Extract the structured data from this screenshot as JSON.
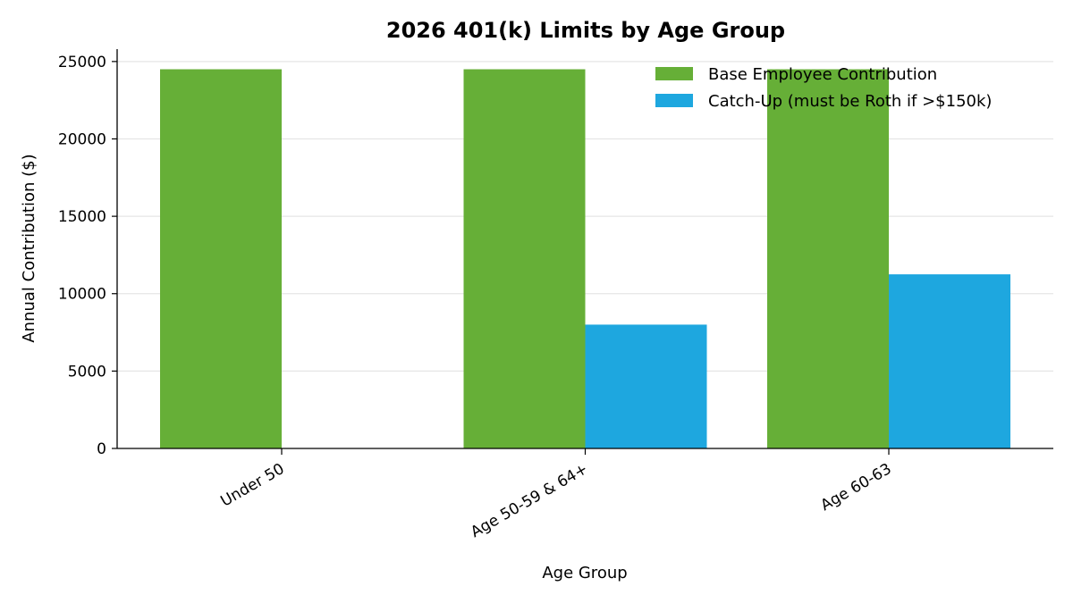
{
  "chart_data": {
    "type": "bar",
    "title": "2026 401(k) Limits by Age Group",
    "xlabel": "Age Group",
    "ylabel": "Annual Contribution ($)",
    "categories": [
      "Under 50",
      "Age 50-59 & 64+",
      "Age 60-63"
    ],
    "series": [
      {
        "name": "Base Employee Contribution",
        "values": [
          24500,
          24500,
          24500
        ],
        "color": "#66AF37"
      },
      {
        "name": "Catch-Up (must be Roth if >$150k)",
        "values": [
          0,
          8000,
          11250
        ],
        "color": "#1EA7DF"
      }
    ],
    "ylim": [
      0,
      25800
    ],
    "yticks": [
      0,
      5000,
      10000,
      15000,
      20000,
      25000
    ],
    "grid": "y",
    "legend_position": "top-right"
  }
}
